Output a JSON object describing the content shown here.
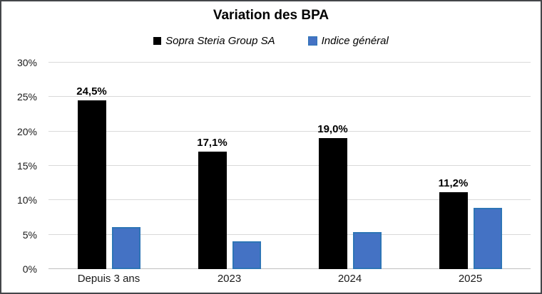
{
  "title": "Variation des BPA",
  "chart_data": {
    "type": "bar",
    "title": "Variation des BPA",
    "categories": [
      "Depuis 3 ans",
      "2023",
      "2024",
      "2025"
    ],
    "series": [
      {
        "name": "Sopra Steria Group SA",
        "color": "#000000",
        "values": [
          24.5,
          17.1,
          19.0,
          11.2
        ],
        "labels": [
          "24,5%",
          "17,1%",
          "19,0%",
          "11,2%"
        ]
      },
      {
        "name": "Indice général",
        "color": "#4472c4",
        "border_color": "#2e75b6",
        "values": [
          6.1,
          4.0,
          5.4,
          8.9
        ],
        "labels": null
      }
    ],
    "ylim": [
      0,
      30
    ],
    "ytick_step": 5,
    "ytick_labels": [
      "0%",
      "5%",
      "10%",
      "15%",
      "20%",
      "25%",
      "30%"
    ],
    "grid": true,
    "legend_position": "top"
  }
}
